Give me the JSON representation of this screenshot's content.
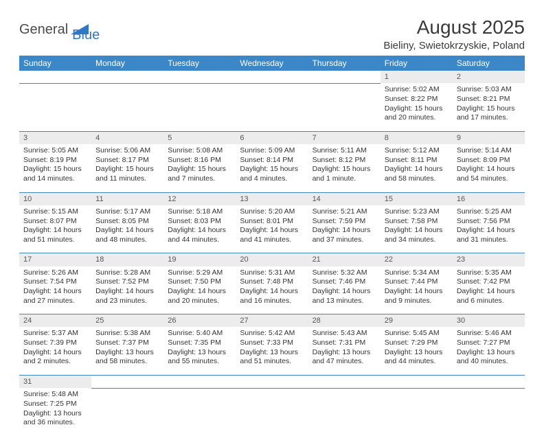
{
  "logo": {
    "text1": "General",
    "text2": "Blue",
    "tri_color": "#2f78c4"
  },
  "header": {
    "title": "August 2025",
    "location": "Bieliny, Swietokrzyskie, Poland"
  },
  "colors": {
    "header_bg": "#3b87c8",
    "header_fg": "#ffffff",
    "daynum_bg": "#ececec",
    "rule": "#3b87c8"
  },
  "weekdays": [
    "Sunday",
    "Monday",
    "Tuesday",
    "Wednesday",
    "Thursday",
    "Friday",
    "Saturday"
  ],
  "weeks": [
    {
      "nums": [
        "",
        "",
        "",
        "",
        "",
        "1",
        "2"
      ],
      "cells": [
        null,
        null,
        null,
        null,
        null,
        {
          "sunrise": "Sunrise: 5:02 AM",
          "sunset": "Sunset: 8:22 PM",
          "day1": "Daylight: 15 hours",
          "day2": "and 20 minutes."
        },
        {
          "sunrise": "Sunrise: 5:03 AM",
          "sunset": "Sunset: 8:21 PM",
          "day1": "Daylight: 15 hours",
          "day2": "and 17 minutes."
        }
      ]
    },
    {
      "nums": [
        "3",
        "4",
        "5",
        "6",
        "7",
        "8",
        "9"
      ],
      "cells": [
        {
          "sunrise": "Sunrise: 5:05 AM",
          "sunset": "Sunset: 8:19 PM",
          "day1": "Daylight: 15 hours",
          "day2": "and 14 minutes."
        },
        {
          "sunrise": "Sunrise: 5:06 AM",
          "sunset": "Sunset: 8:17 PM",
          "day1": "Daylight: 15 hours",
          "day2": "and 11 minutes."
        },
        {
          "sunrise": "Sunrise: 5:08 AM",
          "sunset": "Sunset: 8:16 PM",
          "day1": "Daylight: 15 hours",
          "day2": "and 7 minutes."
        },
        {
          "sunrise": "Sunrise: 5:09 AM",
          "sunset": "Sunset: 8:14 PM",
          "day1": "Daylight: 15 hours",
          "day2": "and 4 minutes."
        },
        {
          "sunrise": "Sunrise: 5:11 AM",
          "sunset": "Sunset: 8:12 PM",
          "day1": "Daylight: 15 hours",
          "day2": "and 1 minute."
        },
        {
          "sunrise": "Sunrise: 5:12 AM",
          "sunset": "Sunset: 8:11 PM",
          "day1": "Daylight: 14 hours",
          "day2": "and 58 minutes."
        },
        {
          "sunrise": "Sunrise: 5:14 AM",
          "sunset": "Sunset: 8:09 PM",
          "day1": "Daylight: 14 hours",
          "day2": "and 54 minutes."
        }
      ]
    },
    {
      "nums": [
        "10",
        "11",
        "12",
        "13",
        "14",
        "15",
        "16"
      ],
      "cells": [
        {
          "sunrise": "Sunrise: 5:15 AM",
          "sunset": "Sunset: 8:07 PM",
          "day1": "Daylight: 14 hours",
          "day2": "and 51 minutes."
        },
        {
          "sunrise": "Sunrise: 5:17 AM",
          "sunset": "Sunset: 8:05 PM",
          "day1": "Daylight: 14 hours",
          "day2": "and 48 minutes."
        },
        {
          "sunrise": "Sunrise: 5:18 AM",
          "sunset": "Sunset: 8:03 PM",
          "day1": "Daylight: 14 hours",
          "day2": "and 44 minutes."
        },
        {
          "sunrise": "Sunrise: 5:20 AM",
          "sunset": "Sunset: 8:01 PM",
          "day1": "Daylight: 14 hours",
          "day2": "and 41 minutes."
        },
        {
          "sunrise": "Sunrise: 5:21 AM",
          "sunset": "Sunset: 7:59 PM",
          "day1": "Daylight: 14 hours",
          "day2": "and 37 minutes."
        },
        {
          "sunrise": "Sunrise: 5:23 AM",
          "sunset": "Sunset: 7:58 PM",
          "day1": "Daylight: 14 hours",
          "day2": "and 34 minutes."
        },
        {
          "sunrise": "Sunrise: 5:25 AM",
          "sunset": "Sunset: 7:56 PM",
          "day1": "Daylight: 14 hours",
          "day2": "and 31 minutes."
        }
      ]
    },
    {
      "nums": [
        "17",
        "18",
        "19",
        "20",
        "21",
        "22",
        "23"
      ],
      "cells": [
        {
          "sunrise": "Sunrise: 5:26 AM",
          "sunset": "Sunset: 7:54 PM",
          "day1": "Daylight: 14 hours",
          "day2": "and 27 minutes."
        },
        {
          "sunrise": "Sunrise: 5:28 AM",
          "sunset": "Sunset: 7:52 PM",
          "day1": "Daylight: 14 hours",
          "day2": "and 23 minutes."
        },
        {
          "sunrise": "Sunrise: 5:29 AM",
          "sunset": "Sunset: 7:50 PM",
          "day1": "Daylight: 14 hours",
          "day2": "and 20 minutes."
        },
        {
          "sunrise": "Sunrise: 5:31 AM",
          "sunset": "Sunset: 7:48 PM",
          "day1": "Daylight: 14 hours",
          "day2": "and 16 minutes."
        },
        {
          "sunrise": "Sunrise: 5:32 AM",
          "sunset": "Sunset: 7:46 PM",
          "day1": "Daylight: 14 hours",
          "day2": "and 13 minutes."
        },
        {
          "sunrise": "Sunrise: 5:34 AM",
          "sunset": "Sunset: 7:44 PM",
          "day1": "Daylight: 14 hours",
          "day2": "and 9 minutes."
        },
        {
          "sunrise": "Sunrise: 5:35 AM",
          "sunset": "Sunset: 7:42 PM",
          "day1": "Daylight: 14 hours",
          "day2": "and 6 minutes."
        }
      ]
    },
    {
      "nums": [
        "24",
        "25",
        "26",
        "27",
        "28",
        "29",
        "30"
      ],
      "cells": [
        {
          "sunrise": "Sunrise: 5:37 AM",
          "sunset": "Sunset: 7:39 PM",
          "day1": "Daylight: 14 hours",
          "day2": "and 2 minutes."
        },
        {
          "sunrise": "Sunrise: 5:38 AM",
          "sunset": "Sunset: 7:37 PM",
          "day1": "Daylight: 13 hours",
          "day2": "and 58 minutes."
        },
        {
          "sunrise": "Sunrise: 5:40 AM",
          "sunset": "Sunset: 7:35 PM",
          "day1": "Daylight: 13 hours",
          "day2": "and 55 minutes."
        },
        {
          "sunrise": "Sunrise: 5:42 AM",
          "sunset": "Sunset: 7:33 PM",
          "day1": "Daylight: 13 hours",
          "day2": "and 51 minutes."
        },
        {
          "sunrise": "Sunrise: 5:43 AM",
          "sunset": "Sunset: 7:31 PM",
          "day1": "Daylight: 13 hours",
          "day2": "and 47 minutes."
        },
        {
          "sunrise": "Sunrise: 5:45 AM",
          "sunset": "Sunset: 7:29 PM",
          "day1": "Daylight: 13 hours",
          "day2": "and 44 minutes."
        },
        {
          "sunrise": "Sunrise: 5:46 AM",
          "sunset": "Sunset: 7:27 PM",
          "day1": "Daylight: 13 hours",
          "day2": "and 40 minutes."
        }
      ]
    },
    {
      "nums": [
        "31",
        "",
        "",
        "",
        "",
        "",
        ""
      ],
      "cells": [
        {
          "sunrise": "Sunrise: 5:48 AM",
          "sunset": "Sunset: 7:25 PM",
          "day1": "Daylight: 13 hours",
          "day2": "and 36 minutes."
        },
        null,
        null,
        null,
        null,
        null,
        null
      ]
    }
  ]
}
